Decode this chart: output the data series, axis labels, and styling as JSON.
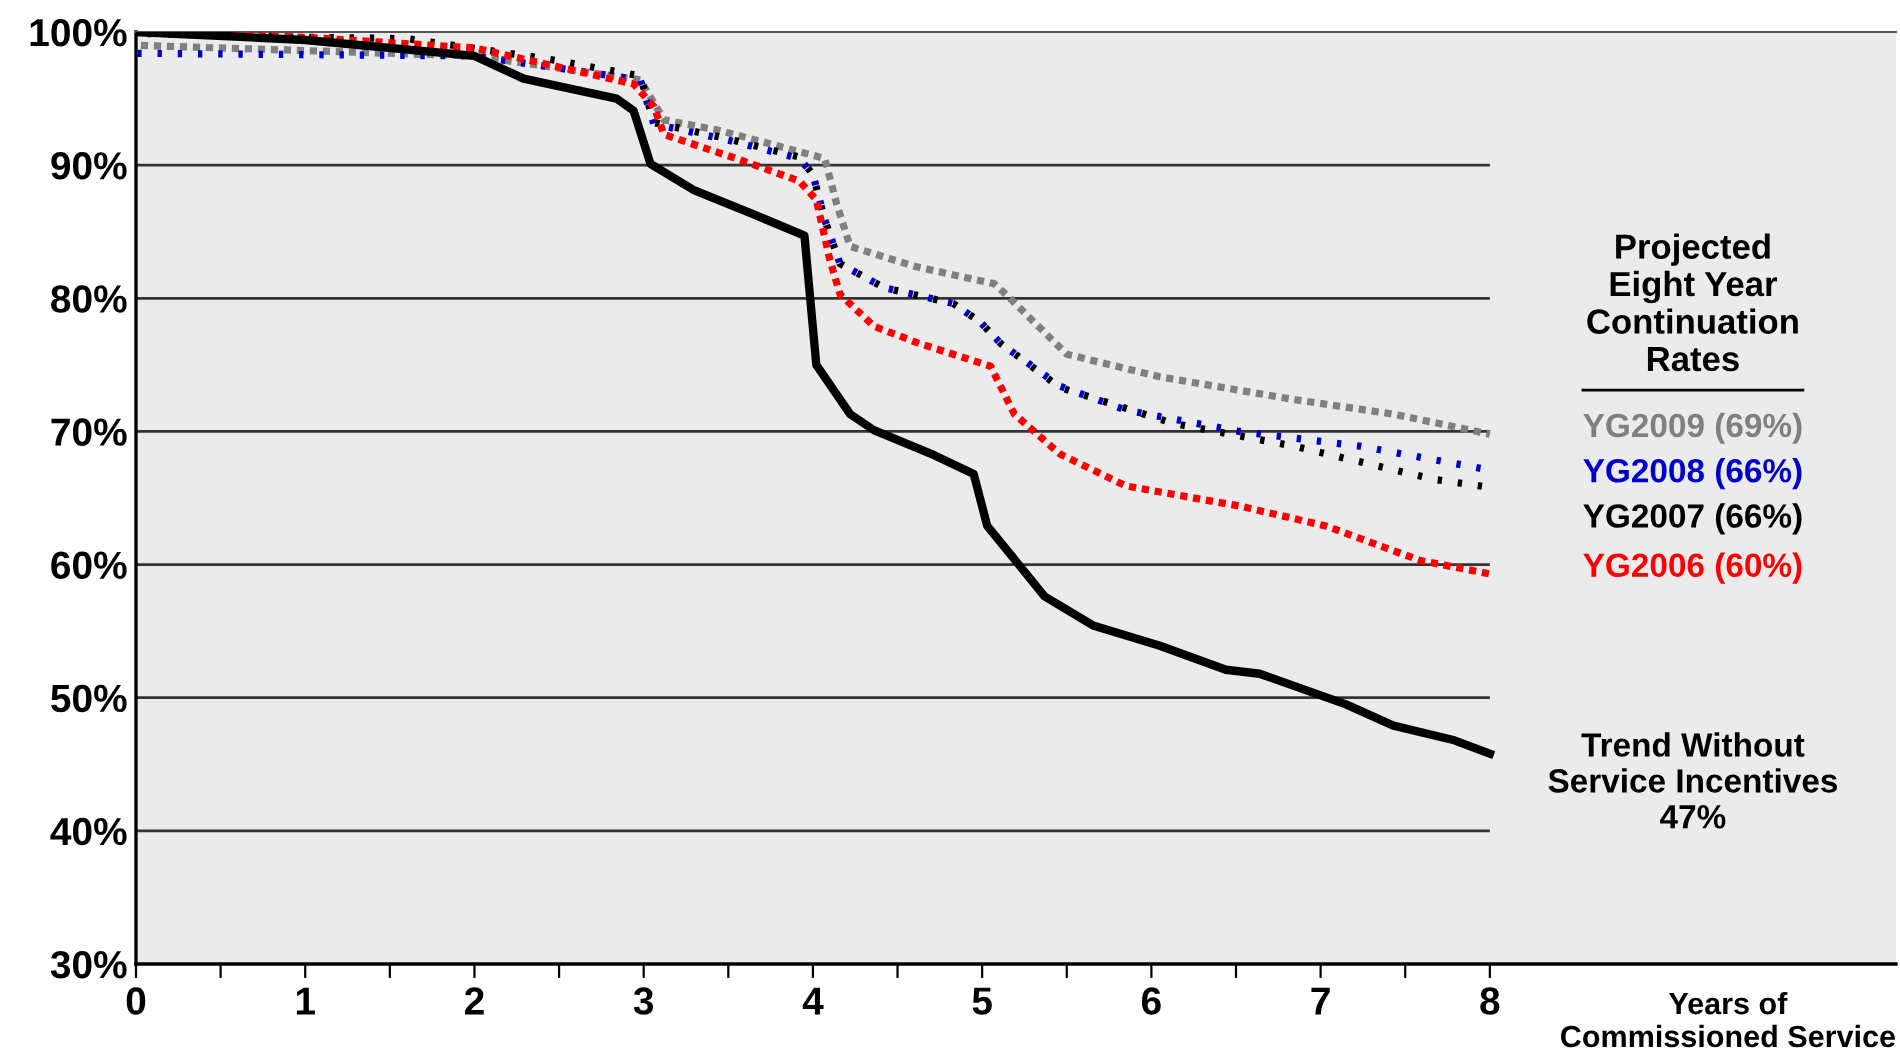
{
  "chart_data": {
    "type": "line",
    "legend_title": "Projected\nEight Year\nContinuation\nRates",
    "xlabel": "Years of\nCommissioned Service",
    "xlim": [
      0,
      10.4
    ],
    "ylim": [
      30,
      100
    ],
    "xticks": [
      0,
      {
        "value": 0.5,
        "label": null
      },
      1,
      {
        "value": 1.5,
        "label": null
      },
      2,
      {
        "value": 2.5,
        "label": null
      },
      3,
      {
        "value": 3.5,
        "label": null
      },
      4,
      {
        "value": 4.5,
        "label": null
      },
      5,
      {
        "value": 5.5,
        "label": null
      },
      6,
      {
        "value": 6.5,
        "label": null
      },
      7,
      {
        "value": 7.5,
        "label": null
      },
      8
    ],
    "yticks": [
      {
        "value": 30,
        "label": "30%"
      },
      {
        "value": 40,
        "label": "40%"
      },
      {
        "value": 50,
        "label": "50%"
      },
      {
        "value": 60,
        "label": "60%"
      },
      {
        "value": 70,
        "label": "70%"
      },
      {
        "value": 80,
        "label": "80%"
      },
      {
        "value": 90,
        "label": "90%"
      },
      {
        "value": 100,
        "label": "100%"
      }
    ],
    "grid": "y",
    "legend": "right",
    "series": [
      {
        "name": "YG2009 (69%)",
        "color": "#808080",
        "line_style": "dotted",
        "x": [
          0,
          1,
          2,
          2.98,
          3.12,
          3.45,
          4.07,
          4.14,
          4.22,
          4.6,
          5.07,
          5.14,
          5.5,
          6.05,
          6.84,
          7.43,
          8
        ],
        "values": [
          99.0,
          98.6,
          98.2,
          96.4,
          93.4,
          92.6,
          90.5,
          87.1,
          83.9,
          82.4,
          81.1,
          80.3,
          75.8,
          74.1,
          72.4,
          71.3,
          69.8
        ]
      },
      {
        "name": "YG2008 (66%)",
        "color": "#0000cc",
        "line_style": "dotted",
        "x": [
          0,
          1,
          2,
          2.98,
          3.06,
          3.49,
          3.92,
          4.0,
          4.07,
          4.16,
          4.42,
          4.83,
          4.99,
          5.11,
          5.46,
          5.85,
          6.52,
          7.23,
          8
        ],
        "values": [
          98.4,
          98.3,
          98.2,
          96.4,
          93.1,
          91.9,
          90.5,
          89.3,
          85.9,
          82.6,
          80.8,
          79.6,
          78.2,
          76.6,
          73.4,
          71.6,
          70.0,
          68.9,
          67.1
        ]
      },
      {
        "name": "YG2007 (66%)",
        "color": "#000000",
        "line_style": "dotted",
        "x": [
          0,
          1,
          1.6,
          2.42,
          2.98,
          3.06,
          3.49,
          3.92,
          4.0,
          4.07,
          4.16,
          4.42,
          4.83,
          4.99,
          5.11,
          5.46,
          6.13,
          6.84,
          7.67,
          8
        ],
        "values": [
          99.9,
          99.6,
          99.5,
          98.0,
          96.7,
          93.2,
          92.0,
          90.6,
          89.3,
          85.9,
          82.6,
          80.8,
          79.6,
          78.2,
          76.6,
          73.3,
          70.6,
          68.9,
          66.4,
          65.8
        ]
      },
      {
        "name": "YG2006 (60%)",
        "color": "#ff0000",
        "line_style": "dotted",
        "x": [
          0,
          1,
          2,
          2.94,
          3.06,
          3.12,
          3.57,
          3.92,
          4.02,
          4.1,
          4.16,
          4.36,
          4.63,
          5.05,
          5.19,
          5.46,
          5.85,
          6.52,
          7.03,
          7.59,
          8
        ],
        "values": [
          100.0,
          99.6,
          98.8,
          96.1,
          94.4,
          92.3,
          90.4,
          88.8,
          87.4,
          82.9,
          80.3,
          77.9,
          76.6,
          74.9,
          71.3,
          68.3,
          65.9,
          64.4,
          62.9,
          60.3,
          59.3
        ]
      },
      {
        "name": "Trend Without\nService Incentives\n47%",
        "color": "#000000",
        "line_style": "solid",
        "x": [
          0,
          1,
          2.0,
          2.29,
          2.84,
          2.94,
          3.04,
          3.3,
          3.65,
          3.95,
          4.02,
          4.22,
          4.36,
          4.72,
          4.95,
          5.03,
          5.37,
          5.66,
          6.05,
          6.44,
          6.64,
          7.15,
          7.43,
          7.79,
          8
        ],
        "values": [
          100.0,
          99.4,
          98.2,
          96.5,
          95.0,
          94.1,
          90.1,
          88.1,
          86.3,
          84.7,
          75.0,
          71.3,
          70.1,
          68.2,
          66.8,
          62.9,
          57.6,
          55.4,
          53.9,
          52.1,
          51.8,
          49.5,
          47.9,
          46.8,
          45.8
        ]
      }
    ]
  }
}
